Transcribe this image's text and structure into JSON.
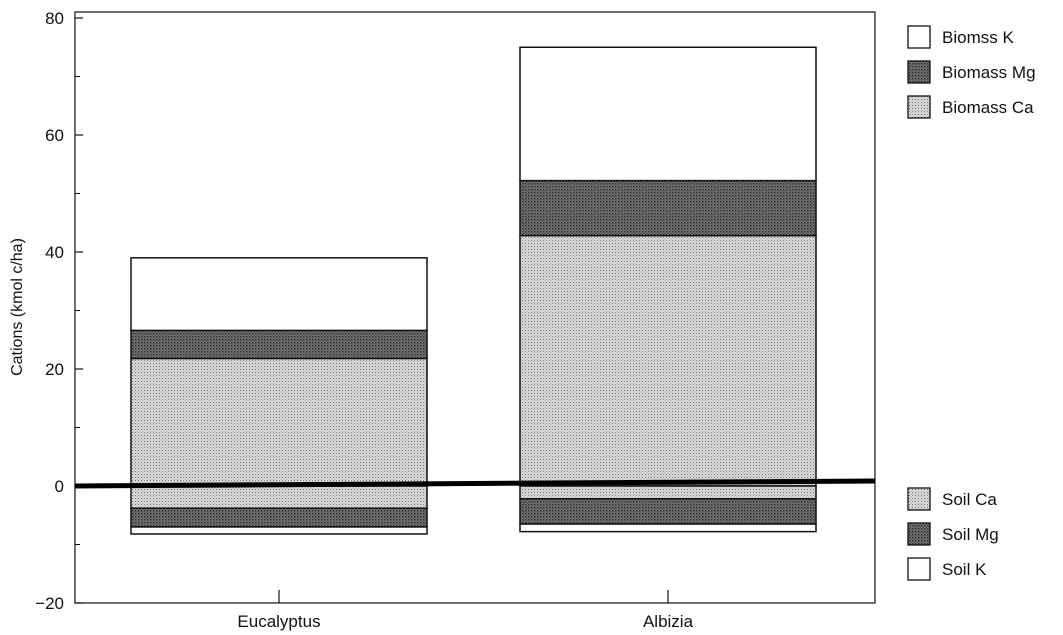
{
  "chart_data": {
    "type": "bar",
    "stacked": true,
    "diverging": true,
    "categories": [
      "Eucalyptus",
      "Albizia"
    ],
    "ylabel": "Cations (kmol c/ha)",
    "xlabel": "",
    "ylim": [
      -20,
      80
    ],
    "yticks": [
      -20,
      0,
      20,
      40,
      60,
      80
    ],
    "grid": false,
    "series": [
      {
        "name": "Biomass Ca",
        "group": "above",
        "values": [
          21.8,
          42.8
        ]
      },
      {
        "name": "Biomass Mg",
        "group": "above",
        "values": [
          4.8,
          9.4
        ]
      },
      {
        "name": "Biomss K",
        "group": "above",
        "values": [
          12.4,
          22.8
        ]
      },
      {
        "name": "Soil Ca",
        "group": "below",
        "values": [
          -3.8,
          -2.2
        ]
      },
      {
        "name": "Soil Mg",
        "group": "below",
        "values": [
          -3.2,
          -4.3
        ]
      },
      {
        "name": "Soil K",
        "group": "below",
        "values": [
          -1.2,
          -1.3
        ]
      }
    ],
    "legend_top": [
      {
        "label": "Biomss K",
        "pattern": "white"
      },
      {
        "label": "Biomass Mg",
        "pattern": "dark"
      },
      {
        "label": "Biomass Ca",
        "pattern": "light"
      }
    ],
    "legend_bottom": [
      {
        "label": "Soil Ca",
        "pattern": "light"
      },
      {
        "label": "Soil Mg",
        "pattern": "dark"
      },
      {
        "label": "Soil K",
        "pattern": "white"
      }
    ],
    "legend_placement": "right"
  }
}
